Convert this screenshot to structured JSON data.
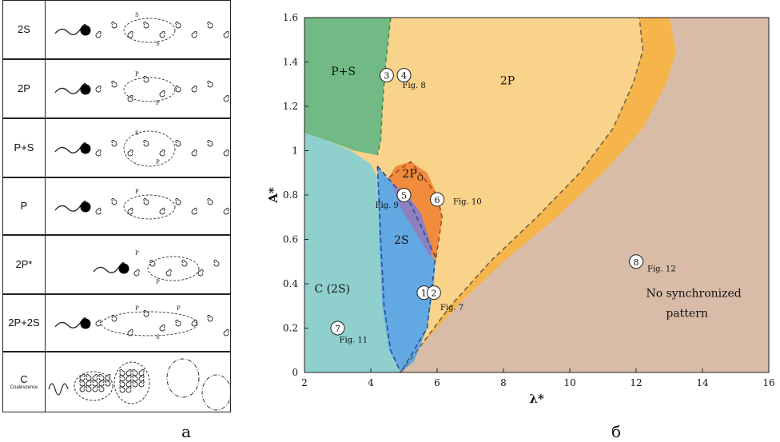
{
  "panel_a": {
    "caption": "a",
    "modes": [
      {
        "label": "2S",
        "sub": "",
        "marks": [
          "S",
          "S"
        ]
      },
      {
        "label": "2P",
        "sub": "",
        "marks": [
          "P",
          "P"
        ]
      },
      {
        "label": "P+S",
        "sub": "",
        "marks": [
          "S",
          "P"
        ]
      },
      {
        "label": "P",
        "sub": "",
        "marks": [
          "P"
        ]
      },
      {
        "label": "2P*",
        "sub": "",
        "marks": [
          "P",
          "P"
        ]
      },
      {
        "label": "2P+2S",
        "sub": "",
        "marks": [
          "P",
          "S",
          "P"
        ]
      },
      {
        "label": "C",
        "sub": "Coalescence",
        "marks": []
      }
    ]
  },
  "panel_b": {
    "caption": "б",
    "xlabel": "λ*",
    "ylabel": "A*",
    "xlim": [
      2,
      16
    ],
    "ylim": [
      0,
      1.6
    ],
    "xticks": [
      "2",
      "4",
      "6",
      "8",
      "10",
      "12",
      "14",
      "16"
    ],
    "yticks": [
      "0",
      "0.2",
      "0.4",
      "0.6",
      "0.8",
      "1",
      "1.2",
      "1.4",
      "1.6"
    ],
    "colors": {
      "c2s": "#8fd0cf",
      "twoS": "#62a8e3",
      "ps": "#72ba85",
      "twoP": "#fad38a",
      "twoP_band": "#f6b54a",
      "none": "#d8bca8",
      "twoPo": "#f08c3c",
      "overlap": "#8e7fbf"
    },
    "regions": {
      "ps": "P+S",
      "twoP": "2P",
      "twoPo_main": "2P",
      "twoPo_sub": "O",
      "twoS": "2S",
      "c2s": "C (2S)",
      "none_line1": "No synchronized",
      "none_line2": "pattern"
    },
    "points": [
      {
        "n": "3",
        "x": 4.48,
        "y": 1.34,
        "fig": ""
      },
      {
        "n": "4",
        "x": 5.0,
        "y": 1.34,
        "fig": "Fig. 8"
      },
      {
        "n": "5",
        "x": 5.0,
        "y": 0.8,
        "fig": "Fig. 9"
      },
      {
        "n": "6",
        "x": 6.0,
        "y": 0.78,
        "fig": "Fig. 10"
      },
      {
        "n": "1",
        "x": 5.6,
        "y": 0.36,
        "fig": ""
      },
      {
        "n": "2",
        "x": 5.9,
        "y": 0.36,
        "fig": "Fig. 7"
      },
      {
        "n": "7",
        "x": 3.0,
        "y": 0.2,
        "fig": "Fig. 11"
      },
      {
        "n": "8",
        "x": 12.0,
        "y": 0.5,
        "fig": "Fig. 12"
      }
    ]
  }
}
